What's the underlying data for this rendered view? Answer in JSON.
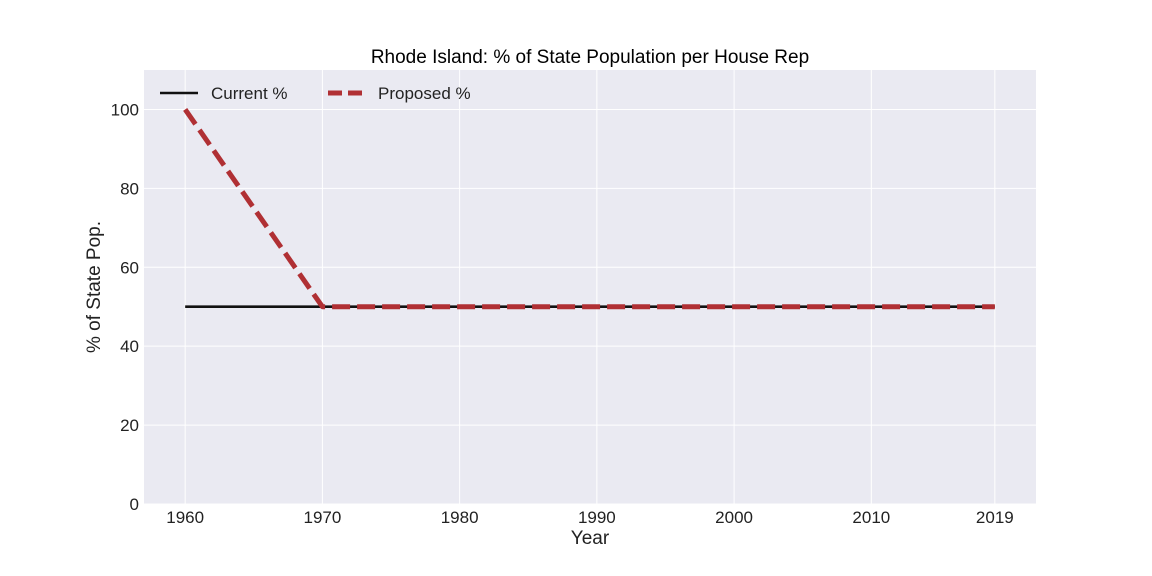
{
  "colors": {
    "background": "#eaeaf2",
    "grid": "#ffffff",
    "current": "#111111",
    "proposed": "#b03034"
  },
  "chart_data": {
    "type": "line",
    "title": "Rhode Island: % of State Population per House Rep",
    "xlabel": "Year",
    "ylabel": "% of State Pop.",
    "xlim": [
      1957,
      2022
    ],
    "ylim": [
      0,
      110
    ],
    "xticks": [
      1960,
      1970,
      1980,
      1990,
      2000,
      2010,
      2019
    ],
    "yticks": [
      0,
      20,
      40,
      60,
      80,
      100
    ],
    "grid": true,
    "legend": "top-left",
    "series": [
      {
        "name": "Current %",
        "style": "solid",
        "x": [
          1960,
          1970,
          1980,
          1990,
          2000,
          2010,
          2019
        ],
        "y": [
          50,
          50,
          50,
          50,
          50,
          50,
          50
        ]
      },
      {
        "name": "Proposed %",
        "style": "dashed",
        "x": [
          1960,
          1970,
          1980,
          1990,
          2000,
          2010,
          2019
        ],
        "y": [
          100,
          50,
          50,
          50,
          50,
          50,
          50
        ]
      }
    ]
  }
}
